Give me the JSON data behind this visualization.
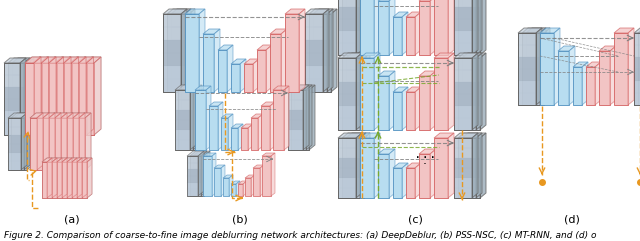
{
  "title": "Figure 2. Comparison of coarse-to-fine image deblurring network architectures: (a) DeepDeblur, (b) PSS-NSC, (c) MT-RNN, and (d) o",
  "subfig_labels": [
    "(a)",
    "(b)",
    "(c)",
    "(d)"
  ],
  "bg_color": "#ffffff",
  "fig_caption_fontsize": 6.5,
  "label_fontsize": 8,
  "pink_face": "#f2c4c4",
  "pink_edge": "#d46060",
  "blue_face": "#b8ddf0",
  "blue_edge": "#5090c0",
  "gray_face": "#e0e0e0",
  "gray_edge": "#888888",
  "orange_color": "#e89820",
  "green_color": "#7aaa30",
  "img_color1": "#c0ccd8",
  "img_color2": "#9aacb8"
}
